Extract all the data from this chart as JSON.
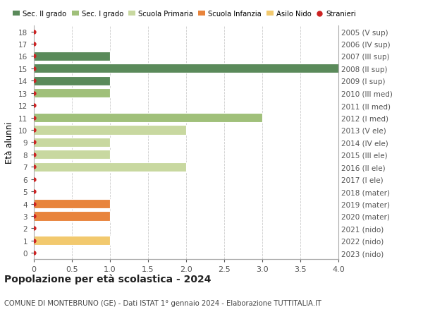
{
  "ages": [
    0,
    1,
    2,
    3,
    4,
    5,
    6,
    7,
    8,
    9,
    10,
    11,
    12,
    13,
    14,
    15,
    16,
    17,
    18
  ],
  "right_labels": [
    "2023 (nido)",
    "2022 (nido)",
    "2021 (nido)",
    "2020 (mater)",
    "2019 (mater)",
    "2018 (mater)",
    "2017 (I ele)",
    "2016 (II ele)",
    "2015 (III ele)",
    "2014 (IV ele)",
    "2013 (V ele)",
    "2012 (I med)",
    "2011 (II med)",
    "2010 (III med)",
    "2009 (I sup)",
    "2008 (II sup)",
    "2007 (III sup)",
    "2006 (IV sup)",
    "2005 (V sup)"
  ],
  "bar_values": [
    0,
    1,
    0,
    1,
    1,
    0,
    0,
    2,
    1,
    1,
    2,
    3,
    0,
    1,
    1,
    4,
    1,
    0,
    0
  ],
  "bar_colors": [
    "#f2c96e",
    "#f2c96e",
    "#f2c96e",
    "#e8843c",
    "#e8843c",
    "#e8843c",
    "#c8d8a0",
    "#c8d8a0",
    "#c8d8a0",
    "#c8d8a0",
    "#c8d8a0",
    "#a0c07a",
    "#a0c07a",
    "#a0c07a",
    "#5a8a5a",
    "#5a8a5a",
    "#5a8a5a",
    "#5a8a5a",
    "#5a8a5a"
  ],
  "stranieri_color": "#cc2222",
  "legend_labels": [
    "Sec. II grado",
    "Sec. I grado",
    "Scuola Primaria",
    "Scuola Infanzia",
    "Asilo Nido",
    "Stranieri"
  ],
  "legend_colors": [
    "#5a8a5a",
    "#a0c07a",
    "#c8d8a0",
    "#e8843c",
    "#f2c96e",
    "#cc2222"
  ],
  "ylabel": "Età alunni",
  "title": "Popolazione per età scolastica - 2024",
  "subtitle": "COMUNE DI MONTEBRUNO (GE) - Dati ISTAT 1° gennaio 2024 - Elaborazione TUTTITALIA.IT",
  "xlim": [
    0,
    4.0
  ],
  "xticks": [
    0,
    0.5,
    1.0,
    1.5,
    2.0,
    2.5,
    3.0,
    3.5,
    4.0
  ],
  "xtick_labels": [
    "0",
    "0.5",
    "1.0",
    "1.5",
    "2.0",
    "2.5",
    "3.0",
    "3.5",
    "4.0"
  ],
  "background_color": "#ffffff",
  "grid_color": "#cccccc",
  "bar_height": 0.75
}
